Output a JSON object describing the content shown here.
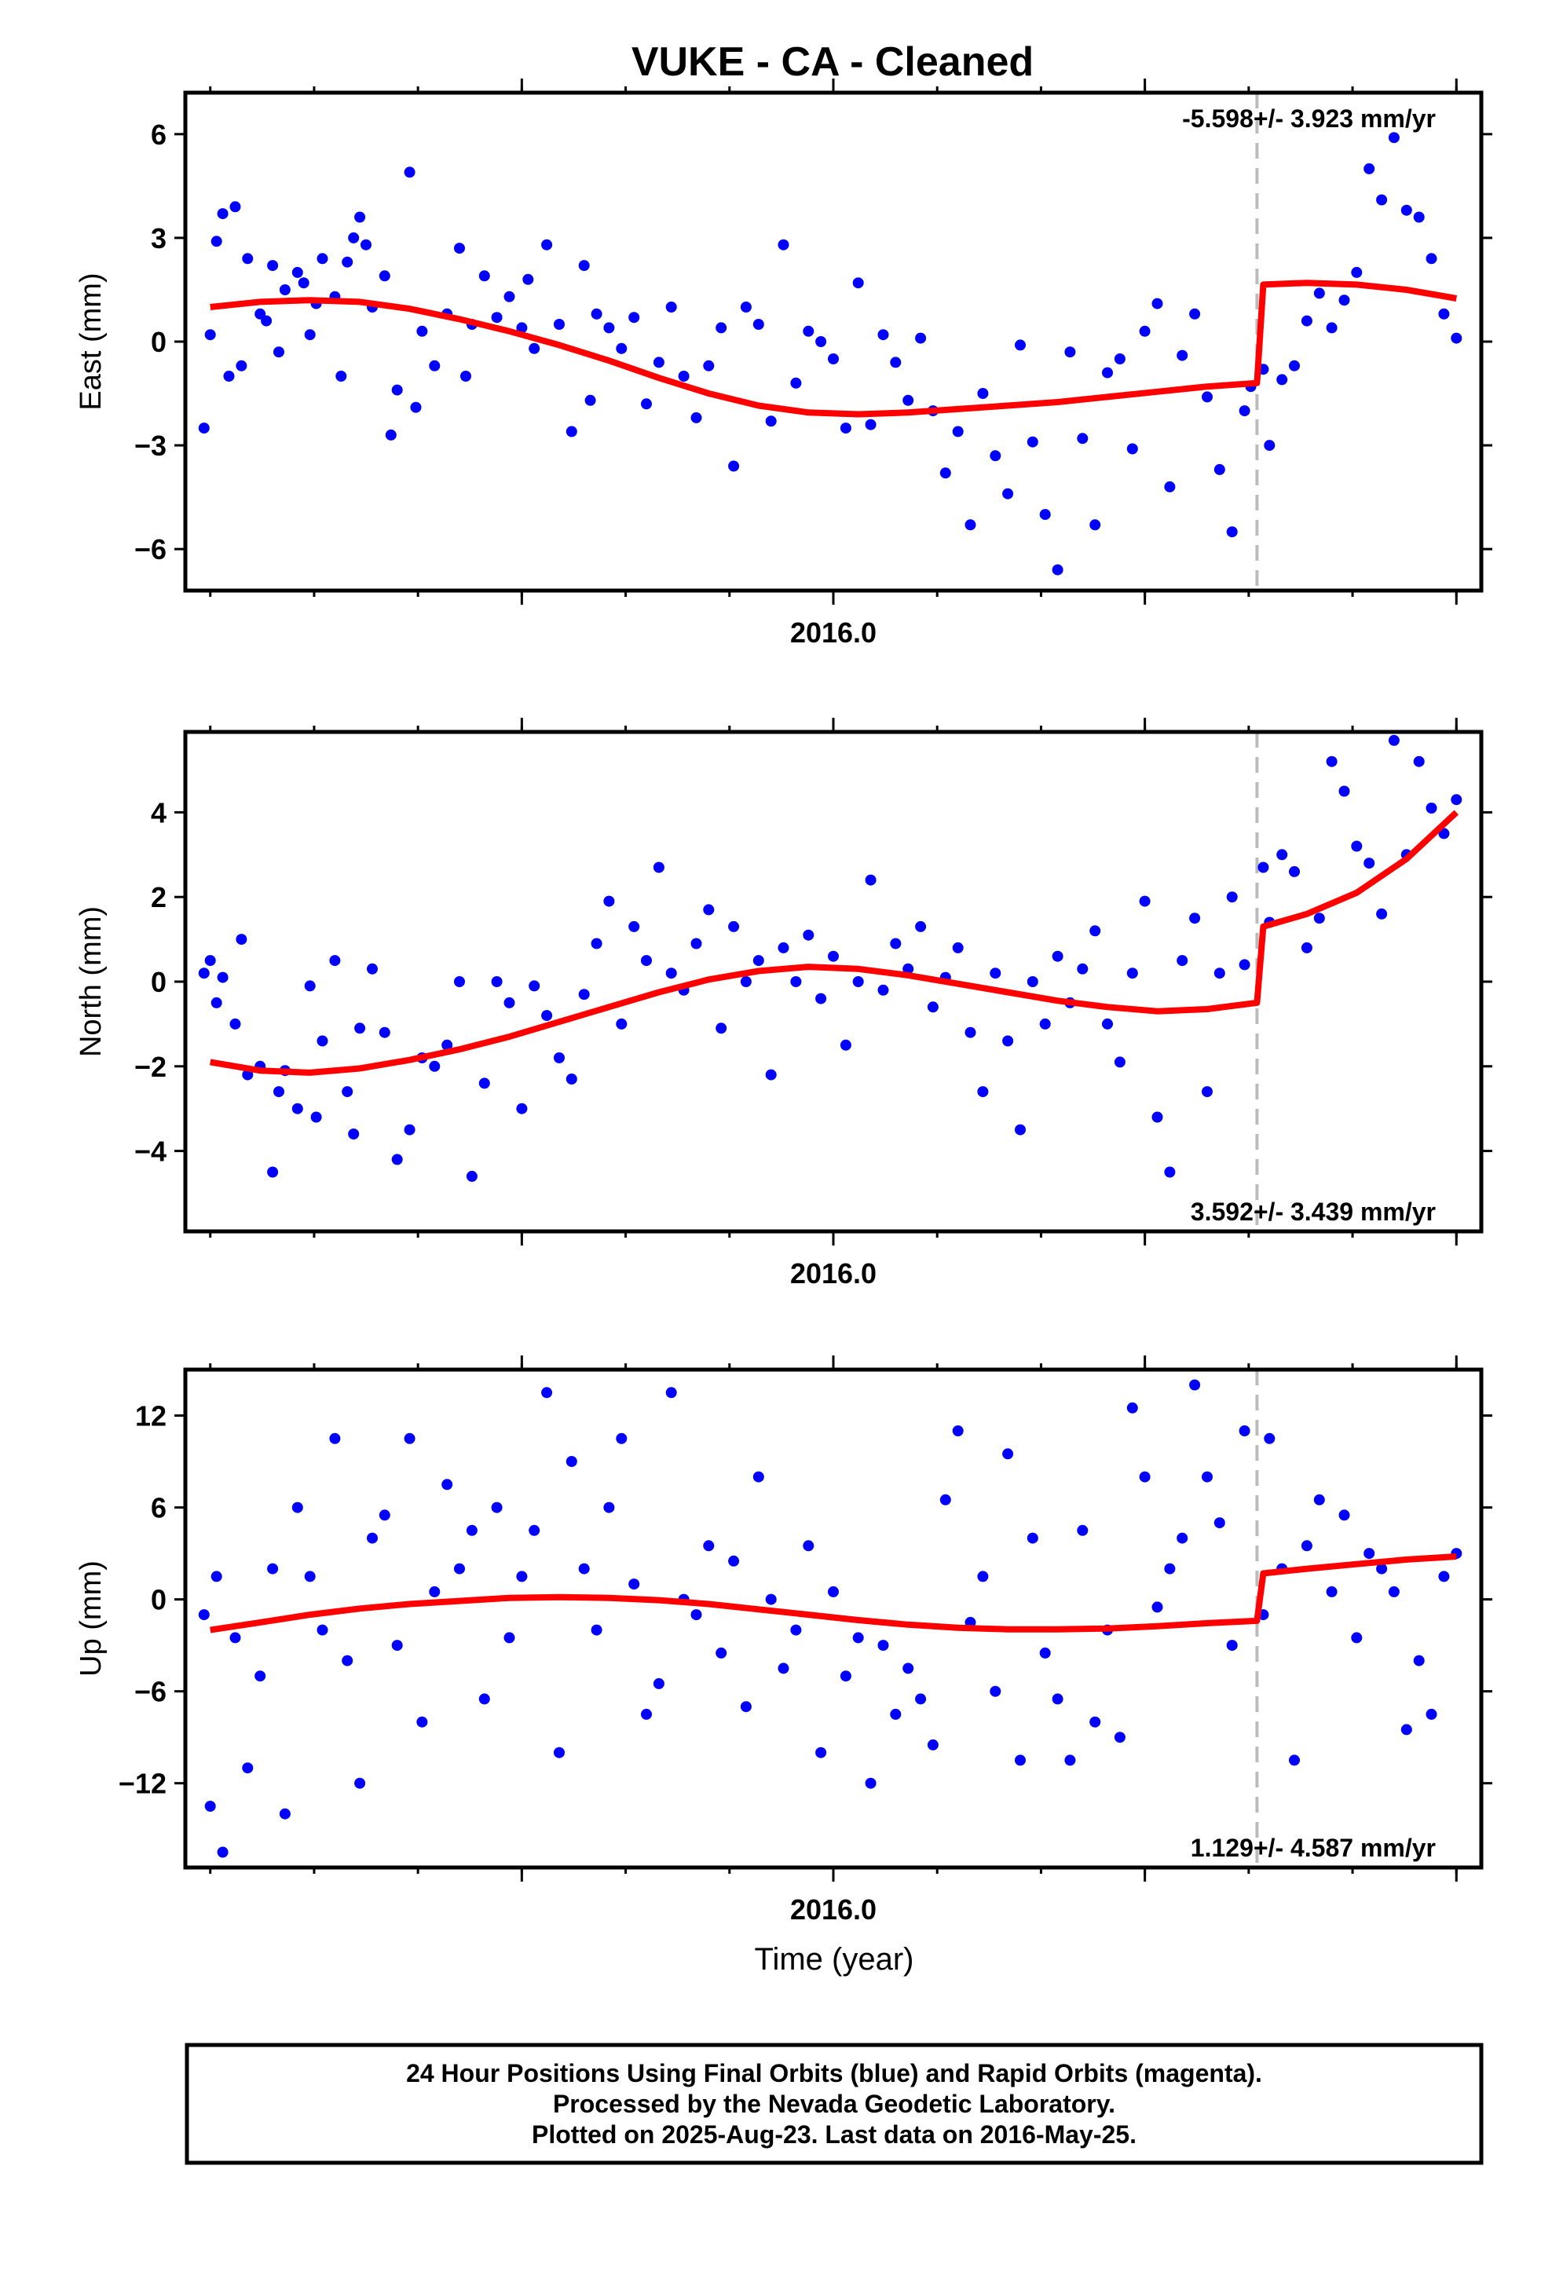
{
  "title": "VUKE  - CA - Cleaned",
  "footer": {
    "line1": "24 Hour Positions Using Final Orbits (blue) and Rapid Orbits (magenta).",
    "line2": "Processed by the Nevada Geodetic Laboratory.",
    "line3": "Plotted on 2025-Aug-23. Last data on 2016-May-25."
  },
  "chart_data": [
    {
      "type": "scatter",
      "component": "east",
      "ylabel": "East (mm)",
      "xlabel": "",
      "ylim": [
        -7.2,
        7.2
      ],
      "yticks": [
        -6,
        -3,
        0,
        3,
        6
      ],
      "ytick_labels": [
        "−6",
        "−3",
        "0",
        "3",
        "6"
      ],
      "xlim": [
        2015.48,
        2016.52
      ],
      "xtick_label": "2016.0",
      "rate_text": "-5.598+/- 3.923 mm/yr",
      "offset_epoch": 2016.34,
      "colors": {
        "points": "#0000ff",
        "fit": "#ff0000",
        "offset_line": "#bbbbbb"
      },
      "fit": {
        "x": [
          2015.5,
          2015.54,
          2015.58,
          2015.62,
          2015.66,
          2015.7,
          2015.74,
          2015.78,
          2015.82,
          2015.86,
          2015.9,
          2015.94,
          2015.98,
          2016.02,
          2016.06,
          2016.1,
          2016.14,
          2016.18,
          2016.22,
          2016.26,
          2016.3,
          2016.34,
          2016.345,
          2016.38,
          2016.42,
          2016.46,
          2016.5
        ],
        "y": [
          1.0,
          1.15,
          1.2,
          1.15,
          0.95,
          0.65,
          0.3,
          -0.1,
          -0.55,
          -1.05,
          -1.5,
          -1.85,
          -2.05,
          -2.1,
          -2.05,
          -1.95,
          -1.85,
          -1.75,
          -1.6,
          -1.45,
          -1.3,
          -1.2,
          1.65,
          1.7,
          1.65,
          1.5,
          1.25
        ]
      },
      "points": {
        "x": [
          2015.495,
          2015.5,
          2015.505,
          2015.51,
          2015.515,
          2015.52,
          2015.525,
          2015.53,
          2015.54,
          2015.545,
          2015.55,
          2015.555,
          2015.56,
          2015.57,
          2015.575,
          2015.58,
          2015.585,
          2015.59,
          2015.6,
          2015.605,
          2015.61,
          2015.615,
          2015.62,
          2015.625,
          2015.63,
          2015.64,
          2015.645,
          2015.65,
          2015.66,
          2015.665,
          2015.67,
          2015.68,
          2015.69,
          2015.7,
          2015.705,
          2015.71,
          2015.72,
          2015.73,
          2015.74,
          2015.75,
          2015.755,
          2015.76,
          2015.77,
          2015.78,
          2015.79,
          2015.8,
          2015.805,
          2015.81,
          2015.82,
          2015.83,
          2015.84,
          2015.85,
          2015.86,
          2015.87,
          2015.88,
          2015.89,
          2015.9,
          2015.91,
          2015.92,
          2015.93,
          2015.94,
          2015.95,
          2015.96,
          2015.97,
          2015.98,
          2015.99,
          2016.0,
          2016.01,
          2016.02,
          2016.03,
          2016.04,
          2016.05,
          2016.06,
          2016.07,
          2016.08,
          2016.09,
          2016.1,
          2016.11,
          2016.12,
          2016.13,
          2016.14,
          2016.15,
          2016.16,
          2016.17,
          2016.18,
          2016.19,
          2016.2,
          2016.21,
          2016.22,
          2016.23,
          2016.24,
          2016.25,
          2016.26,
          2016.27,
          2016.28,
          2016.29,
          2016.3,
          2016.31,
          2016.32,
          2016.33,
          2016.335,
          2016.345,
          2016.35,
          2016.36,
          2016.37,
          2016.38,
          2016.39,
          2016.4,
          2016.41,
          2016.42,
          2016.43,
          2016.44,
          2016.45,
          2016.46,
          2016.47,
          2016.48,
          2016.49,
          2016.5
        ],
        "y": [
          -2.5,
          0.2,
          2.9,
          3.7,
          -1.0,
          3.9,
          -0.7,
          2.4,
          0.8,
          0.6,
          2.2,
          -0.3,
          1.5,
          2.0,
          1.7,
          0.2,
          1.1,
          2.4,
          1.3,
          -1.0,
          2.3,
          3.0,
          3.6,
          2.8,
          1.0,
          1.9,
          -2.7,
          -1.4,
          4.9,
          -1.9,
          0.3,
          -0.7,
          0.8,
          2.7,
          -1.0,
          0.5,
          1.9,
          0.7,
          1.3,
          0.4,
          1.8,
          -0.2,
          2.8,
          0.5,
          -2.6,
          2.2,
          -1.7,
          0.8,
          0.4,
          -0.2,
          0.7,
          -1.8,
          -0.6,
          1.0,
          -1.0,
          -2.2,
          -0.7,
          0.4,
          -3.6,
          1.0,
          0.5,
          -2.3,
          2.8,
          -1.2,
          0.3,
          0.0,
          -0.5,
          -2.5,
          1.7,
          -2.4,
          0.2,
          -0.6,
          -1.7,
          0.1,
          -2.0,
          -3.8,
          -2.6,
          -5.3,
          -1.5,
          -3.3,
          -4.4,
          -0.1,
          -2.9,
          -5.0,
          -6.6,
          -0.3,
          -2.8,
          -5.3,
          -0.9,
          -0.5,
          -3.1,
          0.3,
          1.1,
          -4.2,
          -0.4,
          0.8,
          -1.6,
          -3.7,
          -5.5,
          -2.0,
          -1.3,
          -0.8,
          -3.0,
          -1.1,
          -0.7,
          0.6,
          1.4,
          0.4,
          1.2,
          2.0,
          5.0,
          4.1,
          5.9,
          3.8,
          3.6,
          2.4,
          0.8,
          0.1
        ],
        "note": "representative sample of daily positions"
      }
    },
    {
      "type": "scatter",
      "component": "north",
      "ylabel": "North (mm)",
      "xlabel": "",
      "ylim": [
        -5.9,
        5.9
      ],
      "yticks": [
        -4,
        -2,
        0,
        2,
        4
      ],
      "ytick_labels": [
        "−4",
        "−2",
        "0",
        "2",
        "4"
      ],
      "xlim": [
        2015.48,
        2016.52
      ],
      "xtick_label": "2016.0",
      "rate_text": "3.592+/- 3.439 mm/yr",
      "offset_epoch": 2016.34,
      "colors": {
        "points": "#0000ff",
        "fit": "#ff0000",
        "offset_line": "#bbbbbb"
      },
      "fit": {
        "x": [
          2015.5,
          2015.54,
          2015.58,
          2015.62,
          2015.66,
          2015.7,
          2015.74,
          2015.78,
          2015.82,
          2015.86,
          2015.9,
          2015.94,
          2015.98,
          2016.02,
          2016.06,
          2016.1,
          2016.14,
          2016.18,
          2016.22,
          2016.26,
          2016.3,
          2016.34,
          2016.345,
          2016.38,
          2016.42,
          2016.46,
          2016.5
        ],
        "y": [
          -1.9,
          -2.1,
          -2.15,
          -2.05,
          -1.85,
          -1.6,
          -1.3,
          -0.95,
          -0.6,
          -0.25,
          0.05,
          0.25,
          0.35,
          0.3,
          0.15,
          -0.05,
          -0.25,
          -0.45,
          -0.6,
          -0.7,
          -0.65,
          -0.5,
          1.3,
          1.6,
          2.1,
          2.9,
          4.0
        ]
      },
      "points": {
        "x": [
          2015.495,
          2015.5,
          2015.505,
          2015.51,
          2015.52,
          2015.525,
          2015.53,
          2015.54,
          2015.55,
          2015.555,
          2015.56,
          2015.57,
          2015.58,
          2015.585,
          2015.59,
          2015.6,
          2015.61,
          2015.615,
          2015.62,
          2015.63,
          2015.64,
          2015.65,
          2015.66,
          2015.67,
          2015.68,
          2015.69,
          2015.7,
          2015.71,
          2015.72,
          2015.73,
          2015.74,
          2015.75,
          2015.76,
          2015.77,
          2015.78,
          2015.79,
          2015.8,
          2015.81,
          2015.82,
          2015.83,
          2015.84,
          2015.85,
          2015.86,
          2015.87,
          2015.88,
          2015.89,
          2015.9,
          2015.91,
          2015.92,
          2015.93,
          2015.94,
          2015.95,
          2015.96,
          2015.97,
          2015.98,
          2015.99,
          2016.0,
          2016.01,
          2016.02,
          2016.03,
          2016.04,
          2016.05,
          2016.06,
          2016.07,
          2016.08,
          2016.09,
          2016.1,
          2016.11,
          2016.12,
          2016.13,
          2016.14,
          2016.15,
          2016.16,
          2016.17,
          2016.18,
          2016.19,
          2016.2,
          2016.21,
          2016.22,
          2016.23,
          2016.24,
          2016.25,
          2016.26,
          2016.27,
          2016.28,
          2016.29,
          2016.3,
          2016.31,
          2016.32,
          2016.33,
          2016.345,
          2016.35,
          2016.36,
          2016.37,
          2016.38,
          2016.39,
          2016.4,
          2016.41,
          2016.42,
          2016.43,
          2016.44,
          2016.45,
          2016.46,
          2016.47,
          2016.48,
          2016.49,
          2016.5
        ],
        "y": [
          0.2,
          0.5,
          -0.5,
          0.1,
          -1.0,
          1.0,
          -2.2,
          -2.0,
          -4.5,
          -2.6,
          -2.1,
          -3.0,
          -0.1,
          -3.2,
          -1.4,
          0.5,
          -2.6,
          -3.6,
          -1.1,
          0.3,
          -1.2,
          -4.2,
          -3.5,
          -1.8,
          -2.0,
          -1.5,
          0.0,
          -4.6,
          -2.4,
          0.0,
          -0.5,
          -3.0,
          -0.1,
          -0.8,
          -1.8,
          -2.3,
          -0.3,
          0.9,
          1.9,
          -1.0,
          1.3,
          0.5,
          2.7,
          0.2,
          -0.2,
          0.9,
          1.7,
          -1.1,
          1.3,
          0.0,
          0.5,
          -2.2,
          0.8,
          0.0,
          1.1,
          -0.4,
          0.6,
          -1.5,
          0.0,
          2.4,
          -0.2,
          0.9,
          0.3,
          1.3,
          -0.6,
          0.1,
          0.8,
          -1.2,
          -2.6,
          0.2,
          -1.4,
          -3.5,
          0.0,
          -1.0,
          0.6,
          -0.5,
          0.3,
          1.2,
          -1.0,
          -1.9,
          0.2,
          1.9,
          -3.2,
          -4.5,
          0.5,
          1.5,
          -2.6,
          0.2,
          2.0,
          0.4,
          2.7,
          1.4,
          3.0,
          2.6,
          0.8,
          1.5,
          5.2,
          4.5,
          3.2,
          2.8,
          1.6,
          5.7,
          3.0,
          5.2,
          4.1,
          3.5,
          4.3
        ]
      }
    },
    {
      "type": "scatter",
      "component": "up",
      "ylabel": "Up (mm)",
      "xlabel": "Time (year)",
      "ylim": [
        -17.5,
        15.0
      ],
      "yticks": [
        -12,
        -6,
        0,
        6,
        12
      ],
      "ytick_labels": [
        "−12",
        "−6",
        "0",
        "6",
        "12"
      ],
      "xlim": [
        2015.48,
        2016.52
      ],
      "xtick_label": "2016.0",
      "rate_text": "1.129+/- 4.587 mm/yr",
      "offset_epoch": 2016.34,
      "colors": {
        "points": "#0000ff",
        "fit": "#ff0000",
        "offset_line": "#bbbbbb"
      },
      "fit": {
        "x": [
          2015.5,
          2015.54,
          2015.58,
          2015.62,
          2015.66,
          2015.7,
          2015.74,
          2015.78,
          2015.82,
          2015.86,
          2015.9,
          2015.94,
          2015.98,
          2016.02,
          2016.06,
          2016.1,
          2016.14,
          2016.18,
          2016.22,
          2016.26,
          2016.3,
          2016.34,
          2016.345,
          2016.38,
          2016.42,
          2016.46,
          2016.5
        ],
        "y": [
          -2.0,
          -1.5,
          -1.0,
          -0.6,
          -0.3,
          -0.1,
          0.1,
          0.15,
          0.1,
          -0.05,
          -0.3,
          -0.65,
          -1.0,
          -1.35,
          -1.65,
          -1.85,
          -1.95,
          -1.95,
          -1.9,
          -1.75,
          -1.55,
          -1.4,
          1.7,
          2.0,
          2.3,
          2.6,
          2.8
        ]
      },
      "points": {
        "x": [
          2015.495,
          2015.5,
          2015.505,
          2015.51,
          2015.52,
          2015.53,
          2015.54,
          2015.55,
          2015.56,
          2015.57,
          2015.58,
          2015.59,
          2015.6,
          2015.61,
          2015.62,
          2015.63,
          2015.64,
          2015.65,
          2015.66,
          2015.67,
          2015.68,
          2015.69,
          2015.7,
          2015.71,
          2015.72,
          2015.73,
          2015.74,
          2015.75,
          2015.76,
          2015.77,
          2015.78,
          2015.79,
          2015.8,
          2015.81,
          2015.82,
          2015.83,
          2015.84,
          2015.85,
          2015.86,
          2015.87,
          2015.88,
          2015.89,
          2015.9,
          2015.91,
          2015.92,
          2015.93,
          2015.94,
          2015.95,
          2015.96,
          2015.97,
          2015.98,
          2015.99,
          2016.0,
          2016.01,
          2016.02,
          2016.03,
          2016.04,
          2016.05,
          2016.06,
          2016.07,
          2016.08,
          2016.09,
          2016.1,
          2016.11,
          2016.12,
          2016.13,
          2016.14,
          2016.15,
          2016.16,
          2016.17,
          2016.18,
          2016.19,
          2016.2,
          2016.21,
          2016.22,
          2016.23,
          2016.24,
          2016.25,
          2016.26,
          2016.27,
          2016.28,
          2016.29,
          2016.3,
          2016.31,
          2016.32,
          2016.33,
          2016.345,
          2016.35,
          2016.36,
          2016.37,
          2016.38,
          2016.39,
          2016.4,
          2016.41,
          2016.42,
          2016.43,
          2016.44,
          2016.45,
          2016.46,
          2016.47,
          2016.48,
          2016.49,
          2016.5
        ],
        "y": [
          -1.0,
          -13.5,
          1.5,
          -16.5,
          -2.5,
          -11.0,
          -5.0,
          2.0,
          -14.0,
          6.0,
          1.5,
          -2.0,
          10.5,
          -4.0,
          -12.0,
          4.0,
          5.5,
          -3.0,
          10.5,
          -8.0,
          0.5,
          7.5,
          2.0,
          4.5,
          -6.5,
          6.0,
          -2.5,
          1.5,
          4.5,
          13.5,
          -10.0,
          9.0,
          2.0,
          -2.0,
          6.0,
          10.5,
          1.0,
          -7.5,
          -5.5,
          13.5,
          0.0,
          -1.0,
          3.5,
          -3.5,
          2.5,
          -7.0,
          8.0,
          0.0,
          -4.5,
          -2.0,
          3.5,
          -10.0,
          0.5,
          -5.0,
          -2.5,
          -12.0,
          -3.0,
          -7.5,
          -4.5,
          -6.5,
          -9.5,
          6.5,
          11.0,
          -1.5,
          1.5,
          -6.0,
          9.5,
          -10.5,
          4.0,
          -3.5,
          -6.5,
          -10.5,
          4.5,
          -8.0,
          -2.0,
          -9.0,
          12.5,
          8.0,
          -0.5,
          2.0,
          4.0,
          14.0,
          8.0,
          5.0,
          -3.0,
          11.0,
          -1.0,
          10.5,
          2.0,
          -10.5,
          3.5,
          6.5,
          0.5,
          5.5,
          -2.5,
          3.0,
          2.0,
          0.5,
          -8.5,
          -4.0,
          -7.5,
          1.5,
          3.0
        ]
      }
    }
  ]
}
